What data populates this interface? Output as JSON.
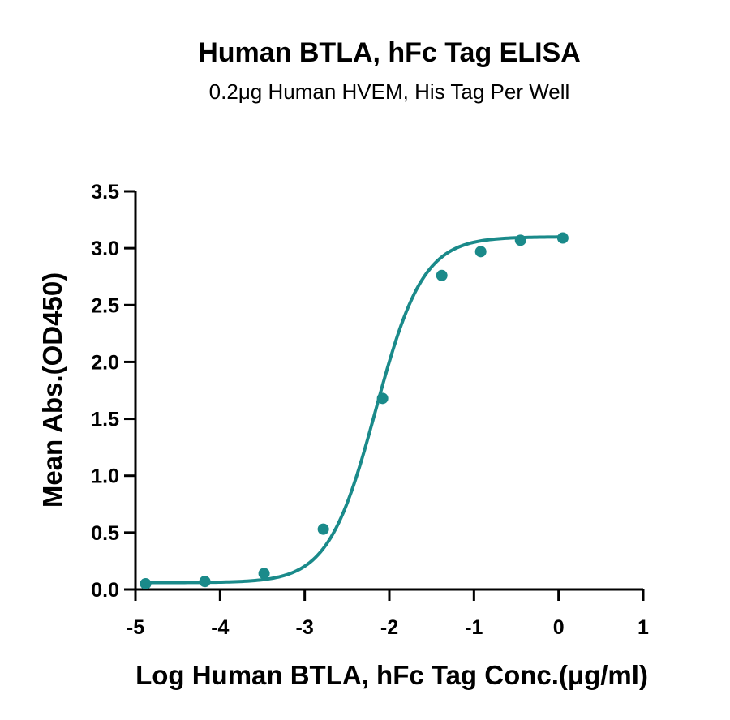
{
  "chart_data": {
    "type": "scatter",
    "title": "Human BTLA, hFc Tag ELISA",
    "subtitle": "0.2μg Human HVEM, His Tag Per Well",
    "xlabel": "Log Human BTLA, hFc Tag Conc.(μg/ml)",
    "ylabel": "Mean Abs.(OD450)",
    "xlim": [
      -5,
      1
    ],
    "ylim": [
      0,
      3.5
    ],
    "xticks": [
      -5,
      -4,
      -3,
      -2,
      -1,
      0,
      1
    ],
    "xtick_labels": [
      "-5",
      "-4",
      "-3",
      "-2",
      "-1",
      "0",
      "1"
    ],
    "yticks": [
      0,
      0.5,
      1,
      1.5,
      2,
      2.5,
      3,
      3.5
    ],
    "ytick_labels": [
      "0.0",
      "0.5",
      "1.0",
      "1.5",
      "2.0",
      "2.5",
      "3.0",
      "3.5"
    ],
    "grid": false,
    "color": "#1a8a8a",
    "series": [
      {
        "x": [
          -4.88,
          -4.18,
          -3.48,
          -2.78,
          -2.08,
          -1.38,
          -0.92,
          -0.45,
          0.05
        ],
        "y": [
          0.05,
          0.07,
          0.14,
          0.53,
          1.68,
          2.76,
          2.97,
          3.07,
          3.09
        ],
        "fit": "4PL",
        "fit_params": {
          "bottom": 0.06,
          "top": 3.1,
          "logEC50": -2.16,
          "hill": 1.55
        }
      }
    ]
  }
}
